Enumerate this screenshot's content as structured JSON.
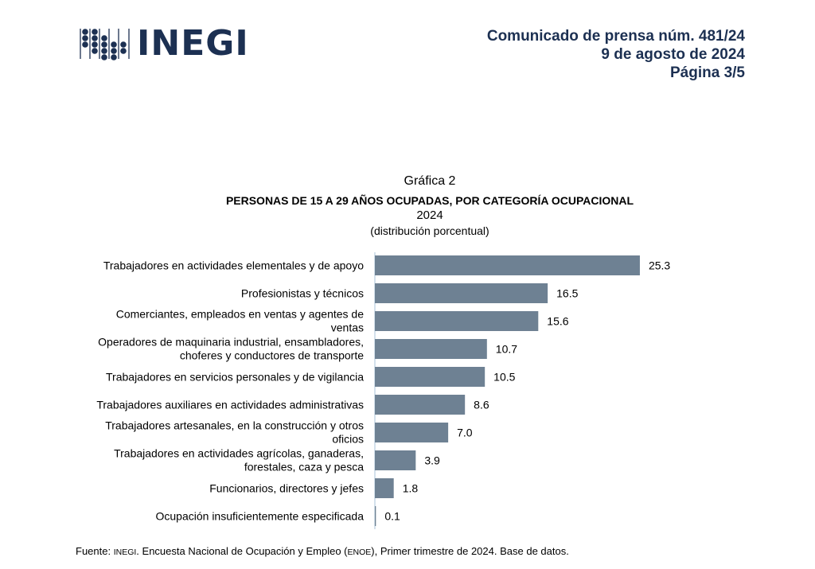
{
  "header": {
    "logo_text": "INEGI",
    "lines": [
      "Comunicado de prensa núm. 481/24",
      "9 de agosto de 2024",
      "Página 3/5"
    ]
  },
  "colors": {
    "brand": "#1c3052",
    "bar": "#6e8193",
    "axis": "#b8cde0"
  },
  "chart_data": {
    "type": "bar",
    "orientation": "horizontal",
    "caption": "Gráfica 2",
    "title": "PERSONAS DE 15 A 29 AÑOS OCUPADAS, POR CATEGORÍA OCUPACIONAL",
    "year": "2024",
    "subtitle": "(distribución porcentual)",
    "categories": [
      [
        "Trabajadores en actividades elementales y de apoyo"
      ],
      [
        "Profesionistas y técnicos"
      ],
      [
        "Comerciantes, empleados en ventas y agentes de",
        "ventas"
      ],
      [
        "Operadores de maquinaria industrial, ensambladores,",
        "choferes y conductores de transporte"
      ],
      [
        "Trabajadores en servicios personales y de vigilancia"
      ],
      [
        "Trabajadores auxiliares en actividades administrativas"
      ],
      [
        "Trabajadores artesanales, en la construcción y otros",
        "oficios"
      ],
      [
        "Trabajadores en actividades agrícolas, ganaderas,",
        "forestales, caza y pesca"
      ],
      [
        "Funcionarios, directores y jefes"
      ],
      [
        "Ocupación insuficientemente especificada"
      ]
    ],
    "values": [
      25.3,
      16.5,
      15.6,
      10.7,
      10.5,
      8.6,
      7.0,
      3.9,
      1.8,
      0.1
    ],
    "value_labels": [
      "25.3",
      "16.5",
      "15.6",
      "10.7",
      "10.5",
      "8.6",
      "7.0",
      "3.9",
      "1.8",
      "0.1"
    ],
    "grid": false,
    "legend": "none"
  },
  "footer": {
    "prefix": "Fuente: ",
    "inegi": "INEGI",
    "mid": ". Encuesta Nacional de Ocupación y Empleo (",
    "enoe": "ENOE",
    "suffix": "), Primer trimestre de 2024. Base de datos."
  }
}
